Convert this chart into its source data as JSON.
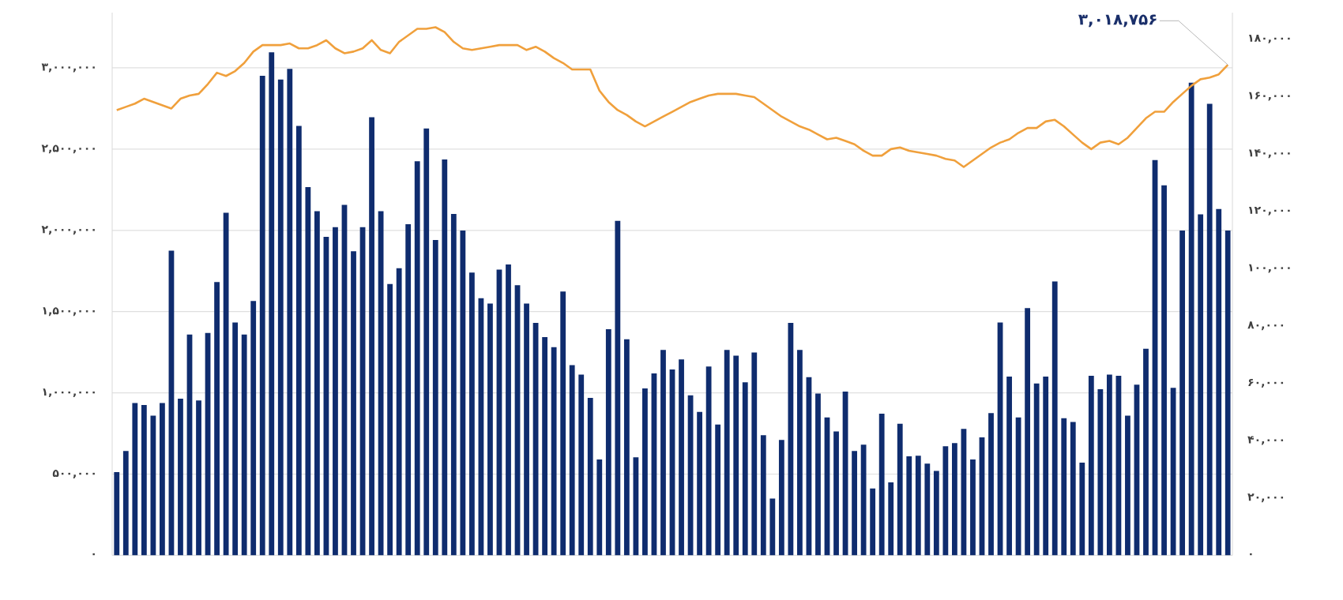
{
  "chart_data": {
    "type": "bar",
    "grid": "y",
    "categories": [
      null,
      null,
      null,
      null,
      null,
      null,
      null,
      null,
      null,
      null,
      null,
      null,
      null,
      null,
      null,
      null,
      null,
      null,
      null,
      null,
      null,
      null,
      null,
      null,
      null,
      null,
      null,
      null,
      null,
      null,
      null,
      null,
      null,
      null,
      null,
      null,
      null,
      null,
      null,
      null,
      null,
      null,
      null,
      null,
      null,
      null,
      null,
      null,
      null,
      null,
      null,
      null,
      null,
      null,
      null,
      null,
      null,
      null,
      null,
      null,
      null,
      null,
      null,
      null,
      null,
      null,
      null,
      null,
      null,
      null,
      null,
      null,
      null,
      null,
      null,
      null,
      null,
      null,
      null,
      null,
      null,
      null,
      null,
      null,
      null,
      null,
      null,
      null,
      null,
      null,
      null,
      null,
      null,
      null,
      null,
      null,
      null,
      null,
      null,
      null,
      null,
      null,
      null,
      null,
      null,
      null,
      null,
      null,
      null,
      null,
      null,
      null,
      null,
      null,
      null,
      null,
      null,
      null,
      null,
      null,
      null,
      null,
      null
    ],
    "ylim": [
      0,
      3340000
    ],
    "yticks": [
      {
        "value": 0,
        "label": "۰"
      },
      {
        "value": 500000,
        "label": "۵۰۰,۰۰۰"
      },
      {
        "value": 1000000,
        "label": "۱,۰۰۰,۰۰۰"
      },
      {
        "value": 1500000,
        "label": "۱,۵۰۰,۰۰۰"
      },
      {
        "value": 2000000,
        "label": "۲,۰۰۰,۰۰۰"
      },
      {
        "value": 2500000,
        "label": "۲,۵۰۰,۰۰۰"
      },
      {
        "value": 3000000,
        "label": "۳,۰۰۰,۰۰۰"
      }
    ],
    "y2lim": [
      0,
      189200
    ],
    "y2ticks": [
      {
        "value": 0,
        "label": "۰"
      },
      {
        "value": 20000,
        "label": "۲۰,۰۰۰"
      },
      {
        "value": 40000,
        "label": "۴۰,۰۰۰"
      },
      {
        "value": 60000,
        "label": "۶۰,۰۰۰"
      },
      {
        "value": 80000,
        "label": "۸۰,۰۰۰"
      },
      {
        "value": 100000,
        "label": "۱۰۰,۰۰۰"
      },
      {
        "value": 120000,
        "label": "۱۲۰,۰۰۰"
      },
      {
        "value": 140000,
        "label": "۱۴۰,۰۰۰"
      },
      {
        "value": 160000,
        "label": "۱۶۰,۰۰۰"
      },
      {
        "value": 180000,
        "label": "۱۸۰,۰۰۰"
      }
    ],
    "annotations": [
      "۳,۰۱۸,۷۵۶"
    ],
    "series": [
      {
        "axis": "y2",
        "color": "#0f2c6e",
        "values": [
          29000,
          36400,
          53100,
          52400,
          48700,
          53100,
          106200,
          54600,
          77000,
          54000,
          77500,
          95300,
          119400,
          81200,
          77000,
          88700,
          167200,
          175400,
          165900,
          169600,
          149700,
          128400,
          120000,
          111000,
          114400,
          122200,
          106000,
          114400,
          152700,
          120000,
          94600,
          100100,
          115400,
          137400,
          148800,
          109900,
          138000,
          119000,
          113200,
          98600,
          89600,
          87800,
          99600,
          101400,
          94200,
          87800,
          81000,
          76100,
          72600,
          92000,
          66300,
          63000,
          54900,
          33400,
          78800,
          116600,
          75300,
          34200,
          58200,
          63400,
          71600,
          64800,
          68300,
          55800,
          50000,
          65800,
          45600,
          71600,
          69600,
          60300,
          70700,
          41900,
          19800,
          40200,
          81000,
          71600,
          62100,
          56400,
          48100,
          43200,
          57100,
          36400,
          38600,
          23300,
          49400,
          25400,
          45900,
          34500,
          34700,
          32000,
          29400,
          38000,
          39100,
          44100,
          33400,
          41100,
          49600,
          81200,
          62300,
          48100,
          86200,
          59900,
          62300,
          95500,
          47800,
          46500,
          32300,
          62600,
          57900,
          63000,
          62600,
          48700,
          59500,
          72000,
          137800,
          129000,
          58400,
          113200,
          164800,
          118900,
          157400,
          120700,
          113200
        ]
      },
      {
        "type": "line",
        "color": "#f0a03c",
        "values": [
          2740000,
          2760000,
          2780000,
          2810000,
          2790000,
          2770000,
          2750000,
          2810000,
          2830000,
          2840000,
          2900000,
          2970000,
          2950000,
          2980000,
          3030000,
          3100000,
          3140000,
          3140000,
          3140000,
          3150000,
          3120000,
          3120000,
          3140000,
          3170000,
          3120000,
          3090000,
          3100000,
          3120000,
          3170000,
          3110000,
          3090000,
          3160000,
          3200000,
          3240000,
          3240000,
          3250000,
          3220000,
          3160000,
          3120000,
          3110000,
          3120000,
          3130000,
          3140000,
          3140000,
          3140000,
          3110000,
          3130000,
          3100000,
          3060000,
          3030000,
          2990000,
          2990000,
          2990000,
          2860000,
          2790000,
          2740000,
          2710000,
          2670000,
          2640000,
          2670000,
          2700000,
          2730000,
          2760000,
          2790000,
          2810000,
          2830000,
          2840000,
          2840000,
          2840000,
          2830000,
          2820000,
          2780000,
          2740000,
          2700000,
          2670000,
          2640000,
          2620000,
          2590000,
          2560000,
          2570000,
          2550000,
          2530000,
          2490000,
          2460000,
          2460000,
          2500000,
          2510000,
          2490000,
          2480000,
          2470000,
          2460000,
          2440000,
          2430000,
          2390000,
          2430000,
          2470000,
          2510000,
          2540000,
          2560000,
          2600000,
          2630000,
          2630000,
          2670000,
          2680000,
          2640000,
          2590000,
          2540000,
          2500000,
          2540000,
          2550000,
          2530000,
          2570000,
          2630000,
          2690000,
          2730000,
          2730000,
          2790000,
          2840000,
          2890000,
          2930000,
          2940000,
          2960000,
          3018756
        ]
      }
    ]
  }
}
